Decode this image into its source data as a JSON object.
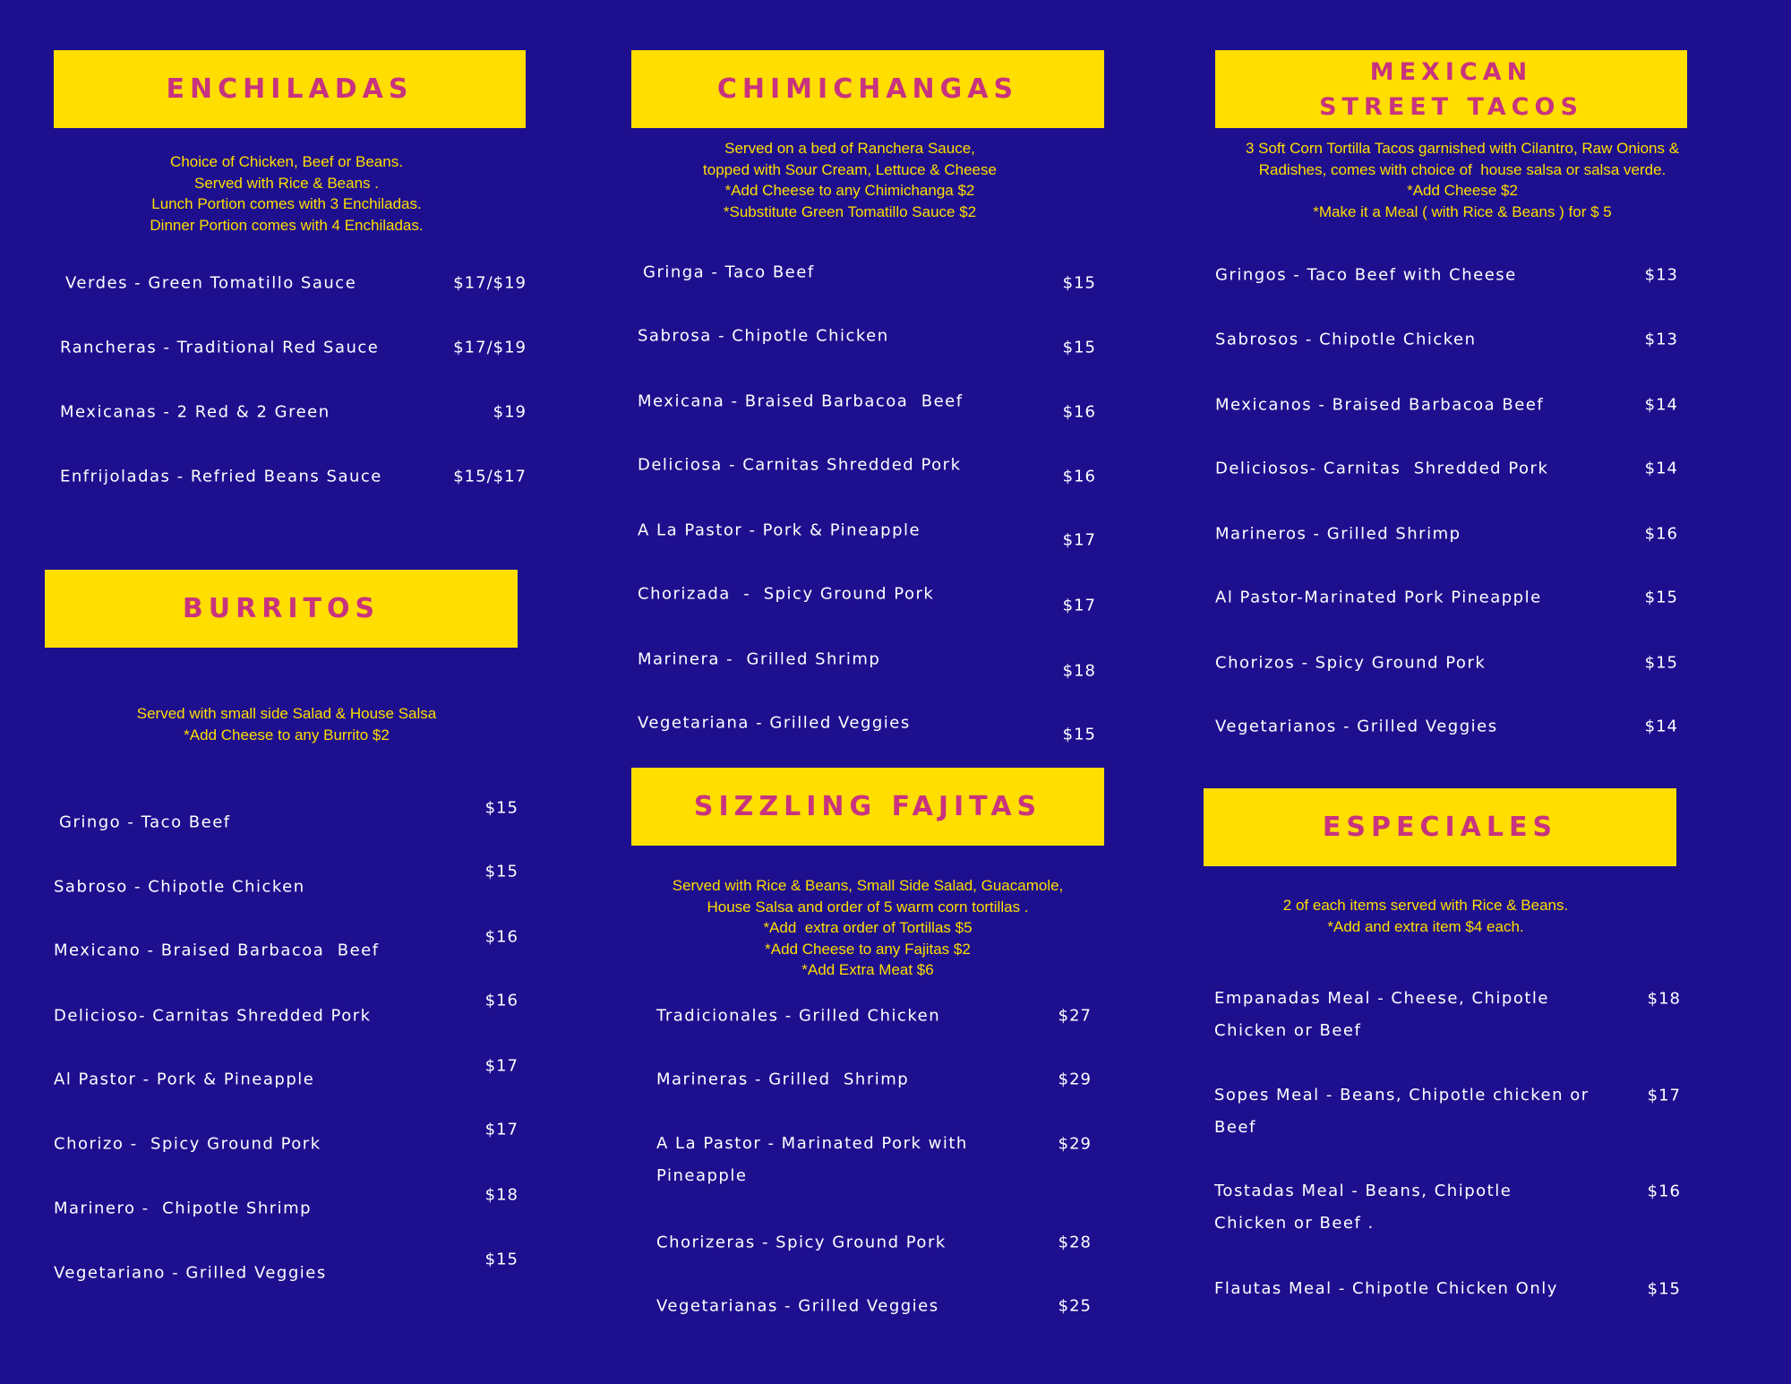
{
  "colors": {
    "background": "#1e0f8f",
    "header_fill": "#ffde00",
    "header_text": "#c8337f",
    "description": "#ffde00",
    "item_text": "#ffffff"
  },
  "sections": [
    {
      "id": "enchiladas",
      "title_lines": [
        "ENCHILADAS"
      ],
      "description": [
        "Choice of Chicken, Beef or Beans.",
        "Served with Rice & Beans .",
        "Lunch Portion comes with 3 Enchiladas.",
        "Dinner Portion comes with 4 Enchiladas."
      ],
      "items": [
        {
          "name": "Verdes - Green Tomatillo Sauce",
          "price": "$17/$19"
        },
        {
          "name": "Rancheras - Traditional Red Sauce",
          "price": "$17/$19"
        },
        {
          "name": "Mexicanas - 2 Red & 2 Green",
          "price": "$19"
        },
        {
          "name": "Enfrijoladas - Refried Beans Sauce",
          "price": "$15/$17"
        }
      ]
    },
    {
      "id": "burritos",
      "title_lines": [
        "BURRITOS"
      ],
      "description": [
        "Served with small side Salad & House Salsa",
        "*Add Cheese to any Burrito $2"
      ],
      "items": [
        {
          "name": "Gringo - Taco Beef",
          "price": "$15"
        },
        {
          "name": "Sabroso - Chipotle Chicken",
          "price": "$15"
        },
        {
          "name": "Mexicano - Braised Barbacoa  Beef",
          "price": "$16"
        },
        {
          "name": "Delicioso- Carnitas Shredded Pork",
          "price": "$16"
        },
        {
          "name": "Al Pastor - Pork & Pineapple",
          "price": "$17"
        },
        {
          "name": "Chorizo -  Spicy Ground Pork",
          "price": "$17"
        },
        {
          "name": "Marinero -  Chipotle Shrimp",
          "price": "$18"
        },
        {
          "name": "Vegetariano - Grilled Veggies",
          "price": "$15"
        }
      ]
    },
    {
      "id": "chimichangas",
      "title_lines": [
        "CHIMICHANGAS"
      ],
      "description": [
        "Served on a bed of Ranchera Sauce,",
        "topped with Sour Cream, Lettuce & Cheese",
        "*Add Cheese to any Chimichanga $2",
        "*Substitute Green Tomatillo Sauce $2"
      ],
      "items": [
        {
          "name": "Gringa - Taco Beef",
          "price": "$15"
        },
        {
          "name": "Sabrosa - Chipotle Chicken",
          "price": "$15"
        },
        {
          "name": "Mexicana - Braised Barbacoa  Beef",
          "price": "$16"
        },
        {
          "name": "Deliciosa - Carnitas Shredded Pork",
          "price": "$16"
        },
        {
          "name": "A La Pastor - Pork & Pineapple",
          "price": "$17"
        },
        {
          "name": "Chorizada  -  Spicy Ground Pork",
          "price": "$17"
        },
        {
          "name": "Marinera -  Grilled Shrimp",
          "price": "$18"
        },
        {
          "name": "Vegetariana - Grilled Veggies",
          "price": "$15"
        }
      ]
    },
    {
      "id": "fajitas",
      "title_lines": [
        "SIZZLING FAJITAS"
      ],
      "description": [
        "Served with Rice & Beans, Small Side Salad, Guacamole,",
        "House Salsa and order of 5 warm corn tortillas .",
        "*Add  extra order of Tortillas $5",
        "*Add Cheese to any Fajitas $2",
        "*Add Extra Meat $6"
      ],
      "items": [
        {
          "name": "Tradicionales - Grilled Chicken",
          "price": "$27"
        },
        {
          "name": "Marineras - Grilled  Shrimp",
          "price": "$29"
        },
        {
          "name": "A La Pastor - Marinated Pork with Pineapple",
          "price": "$29"
        },
        {
          "name": "Chorizeras - Spicy Ground Pork",
          "price": "$28"
        },
        {
          "name": "Vegetarianas - Grilled Veggies",
          "price": "$25"
        }
      ]
    },
    {
      "id": "street-tacos",
      "title_lines": [
        "MEXICAN",
        "STREET TACOS"
      ],
      "description": [
        "3 Soft Corn Tortilla Tacos garnished with Cilantro, Raw Onions &",
        "Radishes, comes with choice of  house salsa or salsa verde.",
        "*Add Cheese $2",
        "*Make it a Meal ( with Rice & Beans ) for $ 5"
      ],
      "items": [
        {
          "name": "Gringos - Taco Beef with Cheese",
          "price": "$13"
        },
        {
          "name": "Sabrosos - Chipotle Chicken",
          "price": "$13"
        },
        {
          "name": "Mexicanos - Braised Barbacoa Beef",
          "price": "$14"
        },
        {
          "name": "Deliciosos- Carnitas  Shredded Pork",
          "price": "$14"
        },
        {
          "name": "Marineros - Grilled Shrimp",
          "price": "$16"
        },
        {
          "name": "Al Pastor-Marinated Pork Pineapple",
          "price": "$15"
        },
        {
          "name": "Chorizos - Spicy Ground Pork",
          "price": "$15"
        },
        {
          "name": "Vegetarianos - Grilled Veggies",
          "price": "$14"
        }
      ]
    },
    {
      "id": "especiales",
      "title_lines": [
        "ESPECIALES"
      ],
      "description": [
        "2 of each items served with Rice & Beans.",
        "*Add and extra item $4 each."
      ],
      "items": [
        {
          "name": "Empanadas Meal - Cheese, Chipotle Chicken or Beef",
          "price": "$18"
        },
        {
          "name": "Sopes Meal - Beans, Chipotle chicken or Beef",
          "price": "$17"
        },
        {
          "name": "Tostadas Meal - Beans, Chipotle Chicken or Beef .",
          "price": "$16"
        },
        {
          "name": "Flautas Meal - Chipotle Chicken Only",
          "price": "$15"
        }
      ]
    }
  ]
}
